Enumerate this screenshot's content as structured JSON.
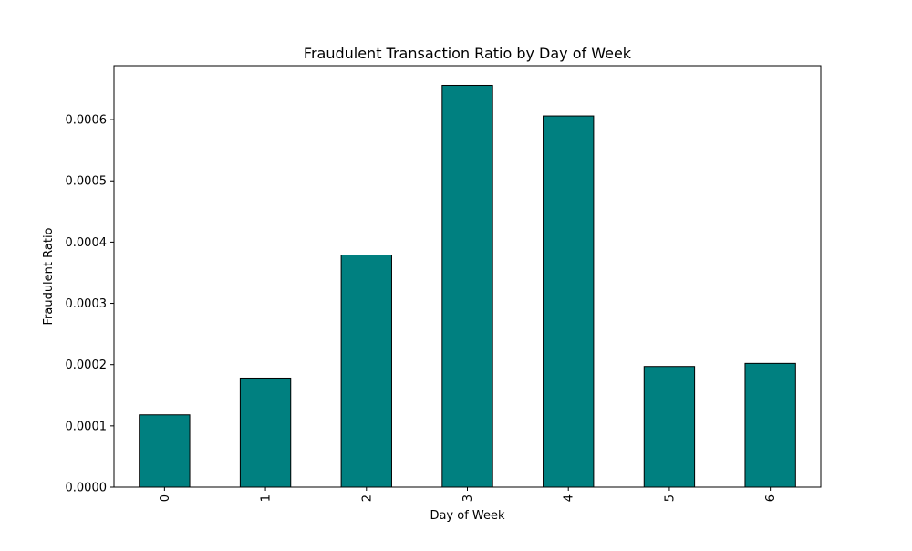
{
  "chart_data": {
    "type": "bar",
    "title": "Fraudulent Transaction Ratio by Day of Week",
    "xlabel": "Day of Week",
    "ylabel": "Fraudulent Ratio",
    "categories": [
      "0",
      "1",
      "2",
      "3",
      "4",
      "5",
      "6"
    ],
    "values": [
      0.000118,
      0.000178,
      0.000379,
      0.000656,
      0.000606,
      0.000197,
      0.000202
    ],
    "ylim": [
      0,
      0.000688
    ],
    "yticks": [
      0,
      0.0001,
      0.0002,
      0.0003,
      0.0004,
      0.0005,
      0.0006
    ],
    "ytick_labels": [
      "0.0000",
      "0.0001",
      "0.0002",
      "0.0003",
      "0.0004",
      "0.0005",
      "0.0006"
    ],
    "xtick_rotation": "vertical",
    "grid": false,
    "legend": "none",
    "bar_color": "#008080",
    "bar_edge_color": "#000000"
  }
}
